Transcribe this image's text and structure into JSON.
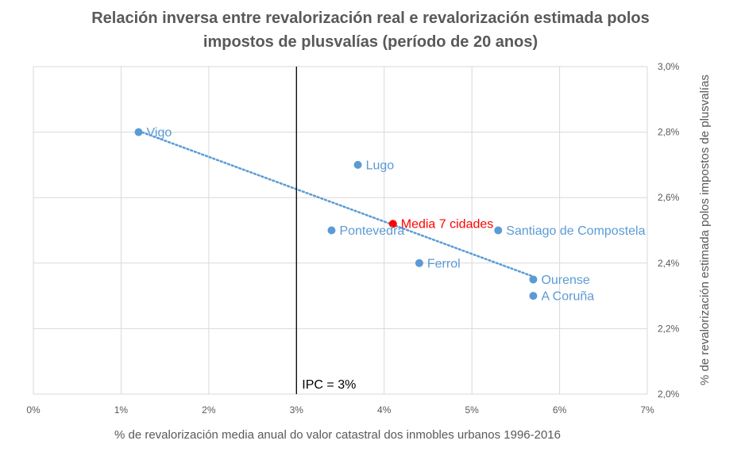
{
  "chart_data": {
    "type": "scatter",
    "title": [
      "Relación inversa entre revalorización real e revalorización estimada polos",
      "impostos de plusvalías (período de 20 anos)"
    ],
    "xlabel": "% de revalorización media anual do valor catastral dos inmobles urbanos 1996-2016",
    "ylabel": "% de revalorización estimada polos impostos de plusvalías",
    "xlim": [
      0,
      7
    ],
    "ylim": [
      2.0,
      3.0
    ],
    "x_ticks": [
      {
        "value": 0,
        "label": "0%"
      },
      {
        "value": 1,
        "label": "1%"
      },
      {
        "value": 2,
        "label": "2%"
      },
      {
        "value": 3,
        "label": "3%"
      },
      {
        "value": 4,
        "label": "4%"
      },
      {
        "value": 5,
        "label": "5%"
      },
      {
        "value": 6,
        "label": "6%"
      },
      {
        "value": 7,
        "label": "7%"
      }
    ],
    "y_ticks": [
      {
        "value": 2.0,
        "label": "2,0%"
      },
      {
        "value": 2.2,
        "label": "2,2%"
      },
      {
        "value": 2.4,
        "label": "2,4%"
      },
      {
        "value": 2.6,
        "label": "2,6%"
      },
      {
        "value": 2.8,
        "label": "2,8%"
      },
      {
        "value": 3.0,
        "label": "3,0%"
      }
    ],
    "y_axis_side": "right",
    "grid": true,
    "series": [
      {
        "color": "#5B9BD5",
        "points": [
          {
            "x": 1.2,
            "y": 2.8,
            "label": "Vigo"
          },
          {
            "x": 3.7,
            "y": 2.7,
            "label": "Lugo"
          },
          {
            "x": 3.4,
            "y": 2.5,
            "label": "Pontevedra"
          },
          {
            "x": 5.3,
            "y": 2.5,
            "label": "Santiago de Compostela"
          },
          {
            "x": 4.4,
            "y": 2.4,
            "label": "Ferrol"
          },
          {
            "x": 5.7,
            "y": 2.35,
            "label": "Ourense"
          },
          {
            "x": 5.7,
            "y": 2.3,
            "label": "A Coruña"
          }
        ]
      },
      {
        "color": "#FF0000",
        "points": [
          {
            "x": 4.1,
            "y": 2.52,
            "label": "Media 7 cidades"
          }
        ]
      }
    ],
    "trendline": {
      "type": "linear",
      "style": "dotted",
      "color": "#5B9BD5",
      "x_from": 1.2,
      "x_to": 5.7
    },
    "reference_line": {
      "x": 3,
      "label": "IPC = 3%",
      "color": "#000000"
    }
  }
}
